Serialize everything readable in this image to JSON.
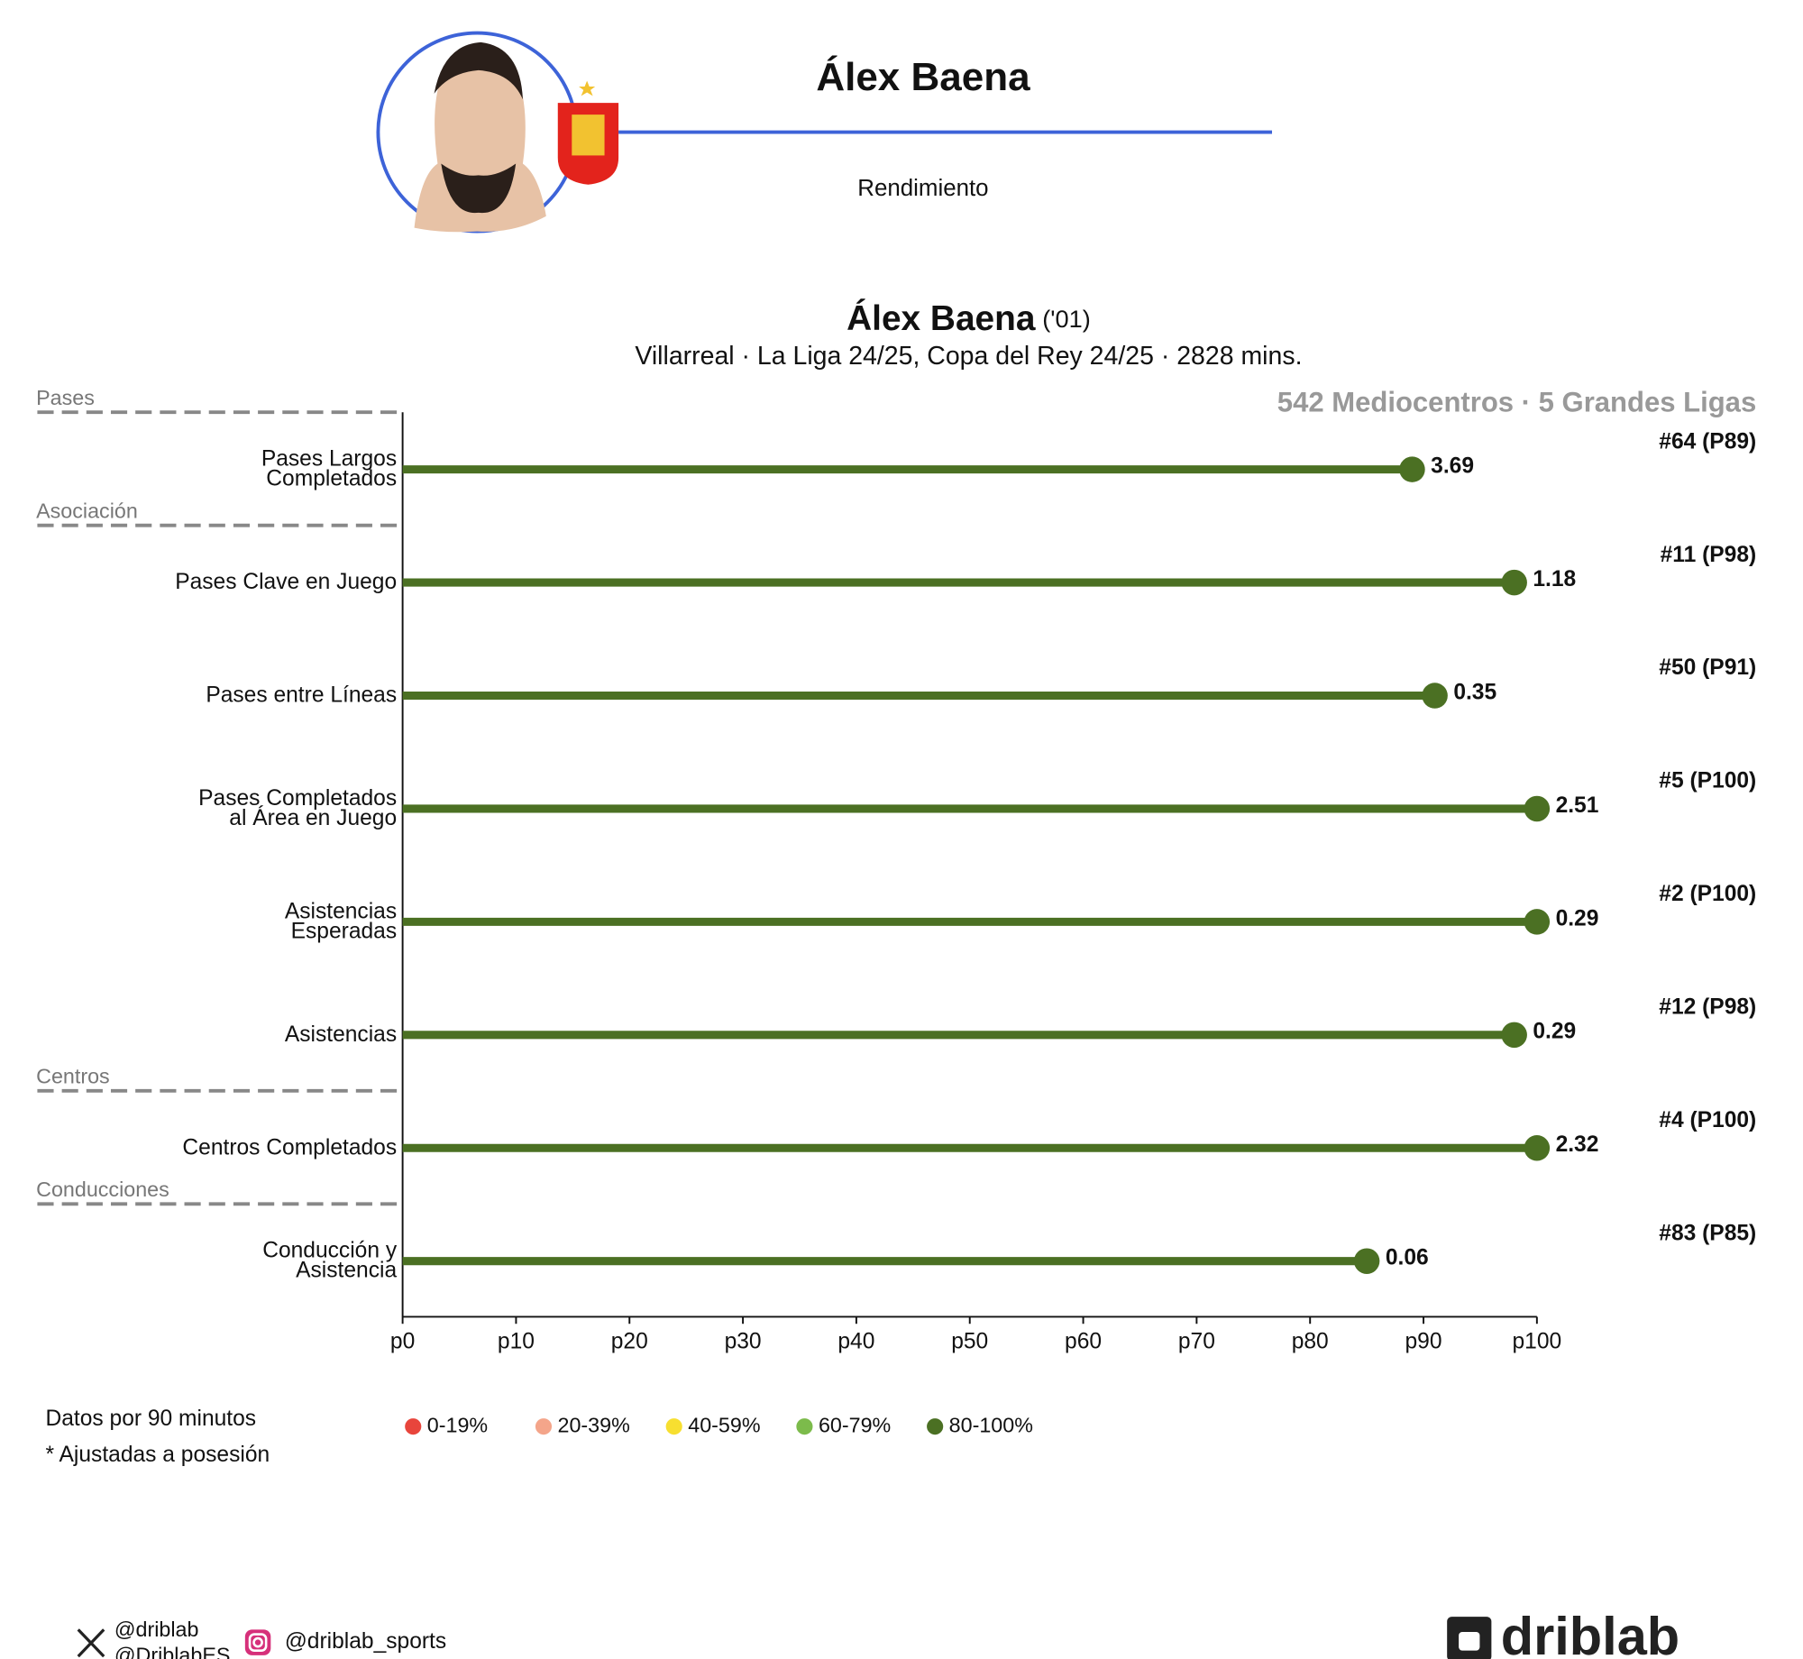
{
  "header": {
    "player_name": "Álex Baena",
    "subtitle": "Rendimiento"
  },
  "chart_data": {
    "type": "lollipop",
    "title": "Álex Baena",
    "title_suffix": "('01)",
    "subtitle": "Villarreal · La Liga 24/25, Copa del Rey 24/25 · 2828 mins.",
    "comparison": "542 Mediocentros · 5 Grandes Ligas",
    "group_labels": [
      "Pases",
      "Asociación",
      null,
      null,
      null,
      null,
      "Centros",
      "Conducciones"
    ],
    "categories": [
      [
        "Pases Largos",
        "Completados"
      ],
      [
        "Pases Clave en Juego"
      ],
      [
        "Pases entre Líneas"
      ],
      [
        "Pases Completados",
        "al Área en Juego"
      ],
      [
        "Asistencias",
        "Esperadas"
      ],
      [
        "Asistencias"
      ],
      [
        "Centros Completados"
      ],
      [
        "Conducción y",
        "Asistencia"
      ]
    ],
    "values": [
      89,
      98,
      91,
      100,
      100,
      98,
      100,
      85
    ],
    "metric_values": [
      "3.69",
      "1.18",
      "0.35",
      "2.51",
      "0.29",
      "0.29",
      "2.32",
      "0.06"
    ],
    "ranks": [
      "#64 (P89)",
      "#11 (P98)",
      "#50 (P91)",
      "#5 (P100)",
      "#2 (P100)",
      "#12 (P98)",
      "#4 (P100)",
      "#83 (P85)"
    ],
    "color": "#4b7023",
    "xlim": [
      0,
      100
    ],
    "xticks": [
      {
        "value": 0,
        "label": "p0"
      },
      {
        "value": 10,
        "label": "p10"
      },
      {
        "value": 20,
        "label": "p20"
      },
      {
        "value": 30,
        "label": "p30"
      },
      {
        "value": 40,
        "label": "p40"
      },
      {
        "value": 50,
        "label": "p50"
      },
      {
        "value": 60,
        "label": "p60"
      },
      {
        "value": 70,
        "label": "p70"
      },
      {
        "value": 80,
        "label": "p80"
      },
      {
        "value": 90,
        "label": "p90"
      },
      {
        "value": 100,
        "label": "p100"
      }
    ],
    "legend": [
      {
        "label": "0-19%",
        "color": "#e8453c"
      },
      {
        "label": "20-39%",
        "color": "#f4a58a"
      },
      {
        "label": "40-59%",
        "color": "#f7df30"
      },
      {
        "label": "60-79%",
        "color": "#7cbb4b"
      },
      {
        "label": "80-100%",
        "color": "#4b7023"
      }
    ],
    "notes": [
      "Datos por 90 minutos",
      "* Ajustadas a posesión"
    ]
  },
  "footer": {
    "x_handles": [
      "@driblab",
      "@DriblabES"
    ],
    "instagram": "@driblab_sports",
    "logo": "driblab"
  }
}
